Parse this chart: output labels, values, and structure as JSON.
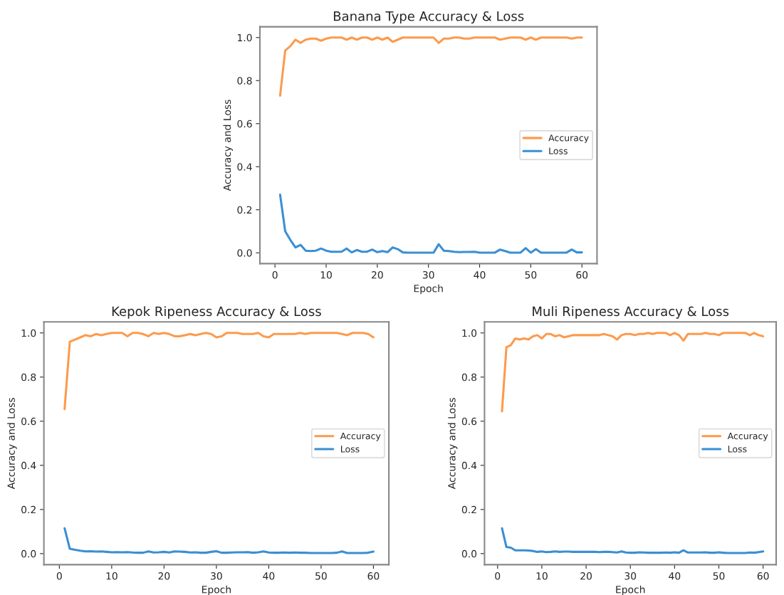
{
  "chart_data": [
    {
      "type": "line",
      "title": "Banana Type Accuracy & Loss",
      "xlabel": "Epoch",
      "ylabel": "Accuracy and Loss",
      "legend": "center right",
      "x": [
        1,
        2,
        3,
        4,
        5,
        6,
        7,
        8,
        9,
        10,
        11,
        12,
        13,
        14,
        15,
        16,
        17,
        18,
        19,
        20,
        21,
        22,
        23,
        24,
        25,
        26,
        27,
        28,
        29,
        30,
        31,
        32,
        33,
        34,
        35,
        36,
        37,
        38,
        39,
        40,
        41,
        42,
        43,
        44,
        45,
        46,
        47,
        48,
        49,
        50,
        51,
        52,
        53,
        54,
        55,
        56,
        57,
        58,
        59,
        60
      ],
      "xlim": [
        -2.95,
        62.95
      ],
      "xticks": [
        0,
        10,
        20,
        30,
        40,
        50,
        60
      ],
      "ylim": [
        -0.05,
        1.05
      ],
      "yticks": [
        {
          "value": 0,
          "label": "0.0"
        },
        {
          "value": 0.2,
          "label": "0.2"
        },
        {
          "value": 0.4,
          "label": "0.4"
        },
        {
          "value": 0.6,
          "label": "0.6"
        },
        {
          "value": 0.8,
          "label": "0.8"
        },
        {
          "value": 1,
          "label": "1.0"
        }
      ],
      "series": [
        {
          "name": "Accuracy",
          "color": "#fd9a4c",
          "values": [
            0.73,
            0.94,
            0.96,
            0.99,
            0.975,
            0.99,
            0.995,
            0.995,
            0.985,
            0.995,
            1.0,
            1.0,
            1.0,
            0.99,
            1.0,
            0.99,
            1.0,
            1.0,
            0.99,
            1.0,
            0.99,
            1.0,
            0.98,
            0.99,
            1.0,
            1.0,
            1.0,
            1.0,
            1.0,
            1.0,
            1.0,
            0.975,
            0.995,
            0.995,
            1.0,
            1.0,
            0.995,
            0.995,
            1.0,
            1.0,
            1.0,
            1.0,
            1.0,
            0.99,
            0.995,
            1.0,
            1.0,
            1.0,
            0.99,
            1.0,
            0.99,
            1.0,
            1.0,
            1.0,
            1.0,
            1.0,
            1.0,
            0.995,
            1.0,
            1.0
          ]
        },
        {
          "name": "Loss",
          "color": "#3a8fd4",
          "values": [
            0.27,
            0.1,
            0.06,
            0.025,
            0.037,
            0.01,
            0.008,
            0.01,
            0.02,
            0.01,
            0.005,
            0.005,
            0.005,
            0.02,
            0.002,
            0.013,
            0.005,
            0.005,
            0.015,
            0.003,
            0.008,
            0.003,
            0.025,
            0.017,
            0.002,
            0.001,
            0.001,
            0.001,
            0.001,
            0.001,
            0.001,
            0.04,
            0.01,
            0.008,
            0.005,
            0.003,
            0.004,
            0.004,
            0.005,
            0.001,
            0.001,
            0.001,
            0.001,
            0.015,
            0.008,
            0.001,
            0.001,
            0.001,
            0.022,
            0.001,
            0.017,
            0.001,
            0.001,
            0.001,
            0.001,
            0.001,
            0.001,
            0.015,
            0.002,
            0.002
          ]
        }
      ]
    },
    {
      "type": "line",
      "title": "Kepok Ripeness Accuracy & Loss",
      "xlabel": "Epoch",
      "ylabel": "Accuracy and Loss",
      "legend": "center right",
      "x": [
        1,
        2,
        3,
        4,
        5,
        6,
        7,
        8,
        9,
        10,
        11,
        12,
        13,
        14,
        15,
        16,
        17,
        18,
        19,
        20,
        21,
        22,
        23,
        24,
        25,
        26,
        27,
        28,
        29,
        30,
        31,
        32,
        33,
        34,
        35,
        36,
        37,
        38,
        39,
        40,
        41,
        42,
        43,
        44,
        45,
        46,
        47,
        48,
        49,
        50,
        51,
        52,
        53,
        54,
        55,
        56,
        57,
        58,
        59,
        60
      ],
      "xlim": [
        -2.95,
        62.95
      ],
      "xticks": [
        0,
        10,
        20,
        30,
        40,
        50,
        60
      ],
      "ylim": [
        -0.05,
        1.05
      ],
      "yticks": [
        {
          "value": 0,
          "label": "0.0"
        },
        {
          "value": 0.2,
          "label": "0.2"
        },
        {
          "value": 0.4,
          "label": "0.4"
        },
        {
          "value": 0.6,
          "label": "0.6"
        },
        {
          "value": 0.8,
          "label": "0.8"
        },
        {
          "value": 1,
          "label": "1.0"
        }
      ],
      "series": [
        {
          "name": "Accuracy",
          "color": "#fd9a4c",
          "values": [
            0.655,
            0.96,
            0.97,
            0.98,
            0.99,
            0.985,
            0.995,
            0.99,
            0.995,
            1.0,
            1.0,
            1.0,
            0.985,
            1.0,
            1.0,
            0.995,
            0.985,
            1.0,
            0.995,
            1.0,
            0.995,
            0.985,
            0.985,
            0.99,
            0.995,
            0.99,
            0.995,
            1.0,
            0.995,
            0.98,
            0.985,
            1.0,
            1.0,
            1.0,
            0.995,
            0.995,
            0.995,
            1.0,
            0.985,
            0.98,
            0.995,
            0.995,
            0.995,
            0.995,
            0.995,
            1.0,
            0.995,
            1.0,
            1.0,
            1.0,
            1.0,
            1.0,
            1.0,
            0.995,
            0.99,
            1.0,
            1.0,
            1.0,
            0.995,
            0.98
          ]
        },
        {
          "name": "Loss",
          "color": "#3a8fd4",
          "values": [
            0.115,
            0.022,
            0.017,
            0.013,
            0.01,
            0.011,
            0.009,
            0.01,
            0.008,
            0.006,
            0.007,
            0.006,
            0.007,
            0.005,
            0.004,
            0.004,
            0.01,
            0.005,
            0.006,
            0.008,
            0.005,
            0.01,
            0.009,
            0.008,
            0.005,
            0.006,
            0.004,
            0.004,
            0.008,
            0.011,
            0.004,
            0.004,
            0.005,
            0.006,
            0.006,
            0.007,
            0.004,
            0.006,
            0.01,
            0.005,
            0.004,
            0.004,
            0.005,
            0.004,
            0.005,
            0.004,
            0.004,
            0.003,
            0.003,
            0.003,
            0.003,
            0.003,
            0.004,
            0.01,
            0.003,
            0.003,
            0.003,
            0.003,
            0.004,
            0.009
          ]
        }
      ]
    },
    {
      "type": "line",
      "title": "Muli Ripeness Accuracy & Loss",
      "xlabel": "Epoch",
      "ylabel": "Accuracy and Loss",
      "legend": "center right",
      "x": [
        1,
        2,
        3,
        4,
        5,
        6,
        7,
        8,
        9,
        10,
        11,
        12,
        13,
        14,
        15,
        16,
        17,
        18,
        19,
        20,
        21,
        22,
        23,
        24,
        25,
        26,
        27,
        28,
        29,
        30,
        31,
        32,
        33,
        34,
        35,
        36,
        37,
        38,
        39,
        40,
        41,
        42,
        43,
        44,
        45,
        46,
        47,
        48,
        49,
        50,
        51,
        52,
        53,
        54,
        55,
        56,
        57,
        58,
        59,
        60
      ],
      "xlim": [
        -2.95,
        62.95
      ],
      "xticks": [
        0,
        10,
        20,
        30,
        40,
        50,
        60
      ],
      "ylim": [
        -0.05,
        1.05
      ],
      "yticks": [
        {
          "value": 0,
          "label": "0.0"
        },
        {
          "value": 0.2,
          "label": "0.2"
        },
        {
          "value": 0.4,
          "label": "0.4"
        },
        {
          "value": 0.6,
          "label": "0.6"
        },
        {
          "value": 0.8,
          "label": "0.8"
        },
        {
          "value": 1,
          "label": "1.0"
        }
      ],
      "series": [
        {
          "name": "Accuracy",
          "color": "#fd9a4c",
          "values": [
            0.645,
            0.935,
            0.945,
            0.975,
            0.97,
            0.975,
            0.97,
            0.985,
            0.99,
            0.975,
            0.995,
            0.995,
            0.985,
            0.99,
            0.98,
            0.985,
            0.99,
            0.99,
            0.99,
            0.99,
            0.99,
            0.99,
            0.99,
            0.995,
            0.99,
            0.985,
            0.97,
            0.99,
            0.995,
            0.995,
            0.99,
            0.995,
            0.995,
            1.0,
            0.995,
            1.0,
            1.0,
            1.0,
            0.99,
            1.0,
            0.99,
            0.965,
            0.995,
            0.995,
            0.995,
            0.995,
            1.0,
            0.995,
            0.995,
            0.99,
            1.0,
            1.0,
            1.0,
            1.0,
            1.0,
            1.0,
            0.99,
            1.0,
            0.99,
            0.985
          ]
        },
        {
          "name": "Loss",
          "color": "#3a8fd4",
          "values": [
            0.115,
            0.03,
            0.027,
            0.015,
            0.015,
            0.015,
            0.014,
            0.012,
            0.008,
            0.01,
            0.007,
            0.008,
            0.01,
            0.008,
            0.009,
            0.009,
            0.008,
            0.008,
            0.008,
            0.008,
            0.008,
            0.008,
            0.007,
            0.008,
            0.008,
            0.007,
            0.005,
            0.01,
            0.005,
            0.004,
            0.004,
            0.006,
            0.005,
            0.004,
            0.004,
            0.004,
            0.004,
            0.005,
            0.004,
            0.006,
            0.004,
            0.015,
            0.005,
            0.005,
            0.005,
            0.005,
            0.006,
            0.004,
            0.004,
            0.006,
            0.004,
            0.003,
            0.003,
            0.003,
            0.003,
            0.003,
            0.005,
            0.004,
            0.007,
            0.01
          ]
        }
      ]
    }
  ]
}
